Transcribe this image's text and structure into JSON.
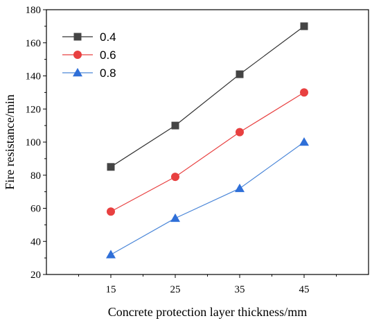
{
  "chart_data": {
    "type": "line",
    "xlabel": "Concrete protection layer thickness/mm",
    "ylabel": "Fire resistance/min",
    "x": [
      15,
      25,
      35,
      45
    ],
    "xticks": [
      15,
      25,
      35,
      45
    ],
    "xlim": [
      5,
      55
    ],
    "ylim": [
      20,
      180
    ],
    "yticks": [
      20,
      40,
      60,
      80,
      100,
      120,
      140,
      160,
      180
    ],
    "grid": false,
    "legend_position": "top-left",
    "series": [
      {
        "name": "0.4",
        "values": [
          85,
          110,
          141,
          170
        ],
        "color": "#444444",
        "line_color": "#333333",
        "marker": "square"
      },
      {
        "name": "0.6",
        "values": [
          58,
          79,
          106,
          130
        ],
        "color": "#e84040",
        "line_color": "#e84040",
        "marker": "circle"
      },
      {
        "name": "0.8",
        "values": [
          32,
          54,
          72,
          100
        ],
        "color": "#2f6fd8",
        "line_color": "#4a86d8",
        "marker": "triangle"
      }
    ]
  }
}
